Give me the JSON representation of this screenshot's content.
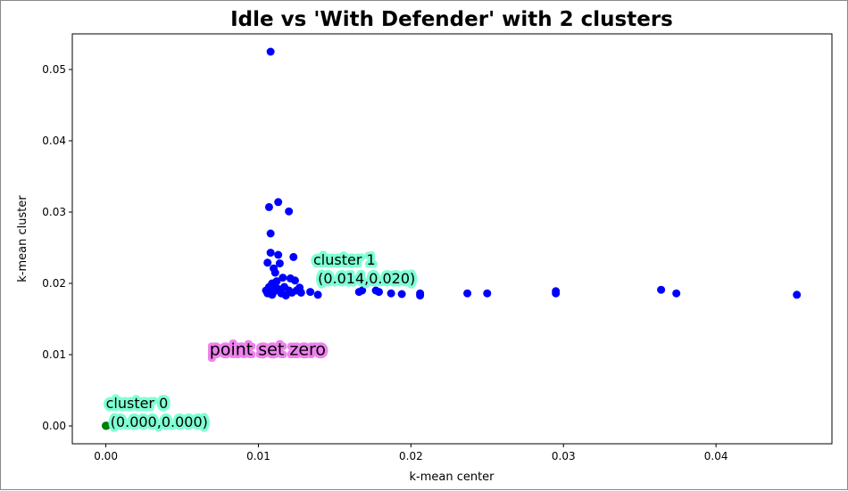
{
  "chart_data": {
    "type": "scatter",
    "title": "Idle vs 'With Defender' with 2 clusters",
    "xlabel": "k-mean center",
    "ylabel": "k-mean cluster",
    "xlim": [
      -0.0022,
      0.0476
    ],
    "ylim": [
      -0.0025,
      0.055
    ],
    "xticks": [
      0.0,
      0.01,
      0.02,
      0.03,
      0.04
    ],
    "xtick_labels": [
      "0.00",
      "0.01",
      "0.02",
      "0.03",
      "0.04"
    ],
    "yticks": [
      0.0,
      0.01,
      0.02,
      0.03,
      0.04,
      0.05
    ],
    "ytick_labels": [
      "0.00",
      "0.01",
      "0.02",
      "0.03",
      "0.04",
      "0.05"
    ],
    "grid": false,
    "series": [
      {
        "name": "cluster 1",
        "color": "#0000ff",
        "points": [
          [
            0.0108,
            0.0525
          ],
          [
            0.0107,
            0.0307
          ],
          [
            0.0113,
            0.0314
          ],
          [
            0.012,
            0.0301
          ],
          [
            0.0108,
            0.027
          ],
          [
            0.0108,
            0.0243
          ],
          [
            0.0113,
            0.024
          ],
          [
            0.0123,
            0.0237
          ],
          [
            0.0106,
            0.0229
          ],
          [
            0.0114,
            0.0228
          ],
          [
            0.011,
            0.0221
          ],
          [
            0.0111,
            0.0215
          ],
          [
            0.0107,
            0.0195
          ],
          [
            0.0109,
            0.02
          ],
          [
            0.0112,
            0.0203
          ],
          [
            0.0116,
            0.0208
          ],
          [
            0.0121,
            0.0207
          ],
          [
            0.0124,
            0.0204
          ],
          [
            0.0105,
            0.019
          ],
          [
            0.0106,
            0.0186
          ],
          [
            0.011,
            0.0188
          ],
          [
            0.0113,
            0.0192
          ],
          [
            0.0115,
            0.0186
          ],
          [
            0.0118,
            0.0183
          ],
          [
            0.012,
            0.019
          ],
          [
            0.0122,
            0.0187
          ],
          [
            0.0125,
            0.019
          ],
          [
            0.0127,
            0.0194
          ],
          [
            0.0128,
            0.0187
          ],
          [
            0.0111,
            0.0196
          ],
          [
            0.0117,
            0.0195
          ],
          [
            0.0109,
            0.0184
          ],
          [
            0.0134,
            0.0188
          ],
          [
            0.0139,
            0.0184
          ],
          [
            0.0166,
            0.0188
          ],
          [
            0.0168,
            0.019
          ],
          [
            0.0177,
            0.019
          ],
          [
            0.0179,
            0.0188
          ],
          [
            0.0187,
            0.0186
          ],
          [
            0.0194,
            0.0185
          ],
          [
            0.0206,
            0.0186
          ],
          [
            0.0206,
            0.0183
          ],
          [
            0.0237,
            0.0186
          ],
          [
            0.025,
            0.0186
          ],
          [
            0.0295,
            0.0189
          ],
          [
            0.0295,
            0.0186
          ],
          [
            0.0364,
            0.0191
          ],
          [
            0.0374,
            0.0186
          ],
          [
            0.0453,
            0.0184
          ]
        ]
      },
      {
        "name": "cluster 0",
        "color": "#008000",
        "points": [
          [
            0,
            0
          ],
          [
            5e-05,
            3e-05
          ],
          [
            0,
            5e-05
          ]
        ]
      }
    ],
    "annotations": [
      {
        "lines": [
          "cluster 1",
          " (0.014,0.020)"
        ],
        "x": 0.0136,
        "y": 0.0233,
        "bg": "#7fffd4"
      },
      {
        "lines": [
          "cluster 0",
          " (0.000,0.000)"
        ],
        "x": 0.0,
        "y": 0.0032,
        "bg": "#7fffd4"
      },
      {
        "lines": [
          "point set zero"
        ],
        "x": 0.0068,
        "y": 0.0108,
        "bg": "#ee82ee",
        "big": true
      }
    ]
  }
}
